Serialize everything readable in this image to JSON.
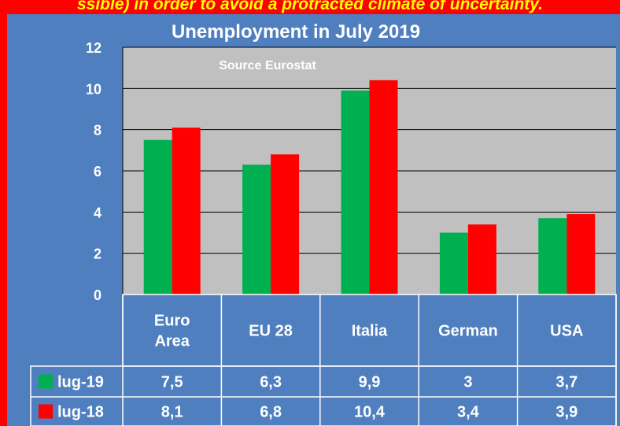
{
  "banner_text": "ssible) in order to avoid a protracted climate of uncertainty.",
  "chart_data": {
    "type": "bar",
    "title": "Unemployment in July 2019",
    "subtitle": "Source Eurostat",
    "categories": [
      "Euro Area",
      "EU 28",
      "Italia",
      "German",
      "USA"
    ],
    "category_lines": [
      [
        "Euro",
        "Area"
      ],
      [
        "EU 28"
      ],
      [
        "Italia"
      ],
      [
        "German"
      ],
      [
        "USA"
      ]
    ],
    "series": [
      {
        "name": "lug-19",
        "color": "#00b050",
        "values": [
          7.5,
          6.3,
          9.9,
          3,
          3.7
        ],
        "labels": [
          "7,5",
          "6,3",
          "9,9",
          "3",
          "3,7"
        ]
      },
      {
        "name": "lug-18",
        "color": "#ff0000",
        "values": [
          8.1,
          6.8,
          10.4,
          3.4,
          3.9
        ],
        "labels": [
          "8,1",
          "6,8",
          "10,4",
          "3,4",
          "3,9"
        ]
      }
    ],
    "ylim": [
      0,
      12
    ],
    "yticks": [
      0,
      2,
      4,
      6,
      8,
      10,
      12
    ],
    "grid": true,
    "plot_background": "#c0c0c0",
    "legend": "data-table"
  }
}
